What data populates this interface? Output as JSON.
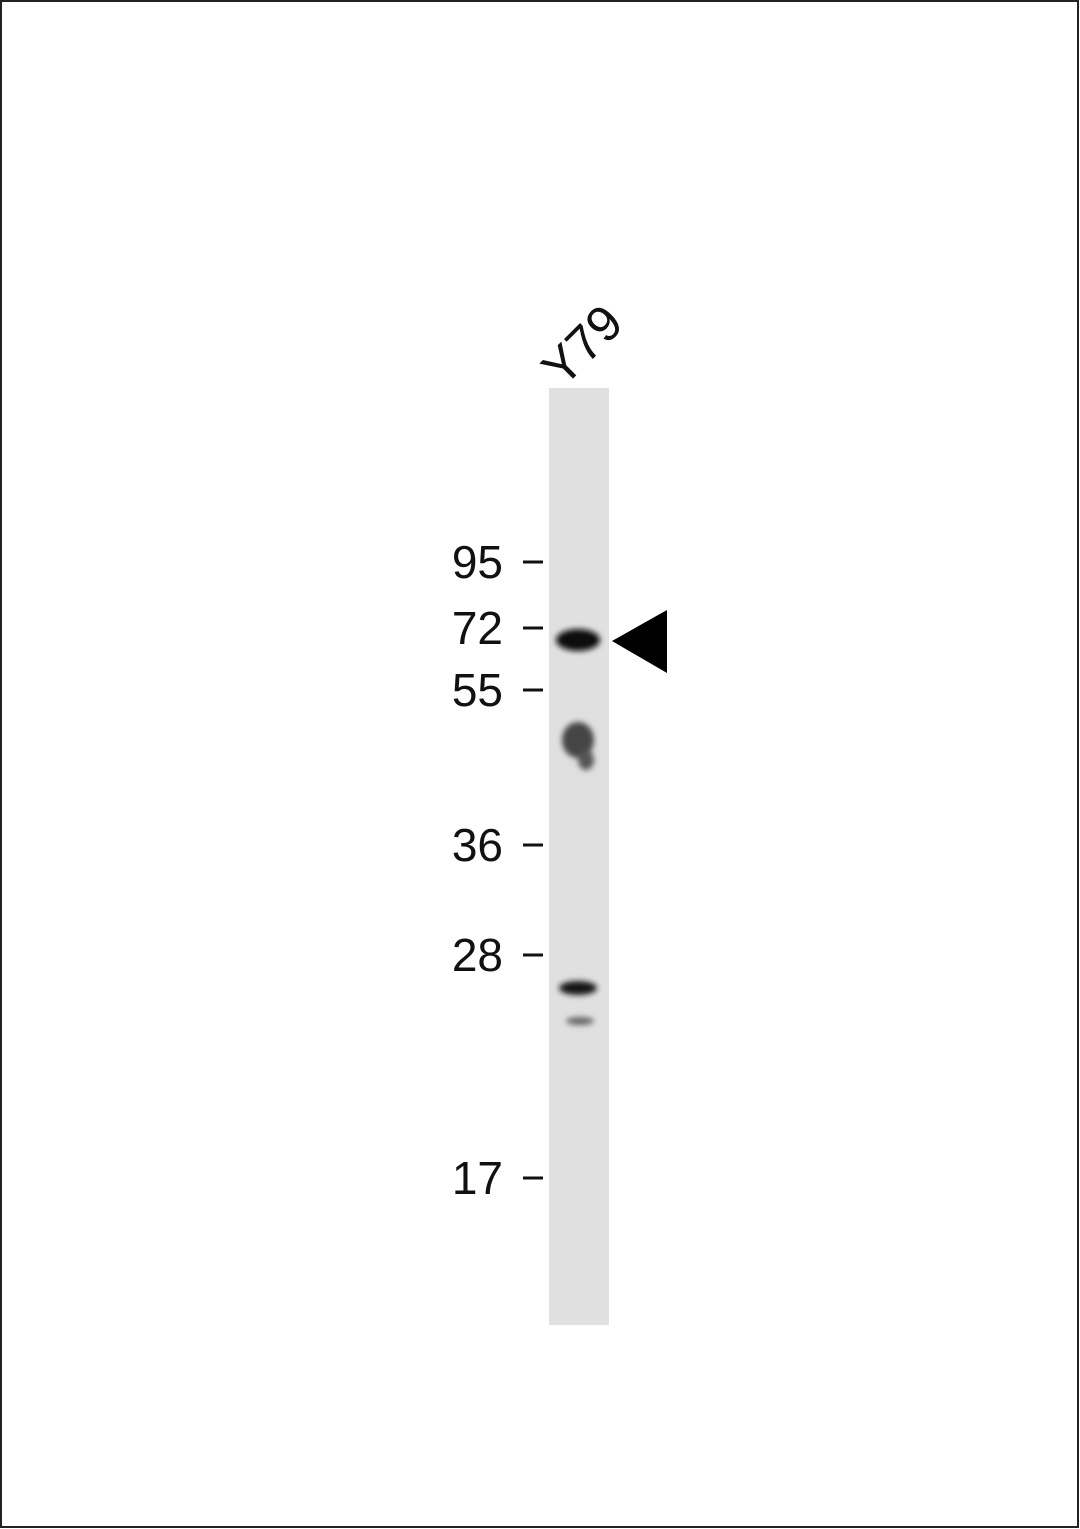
{
  "lane": {
    "label": "Y79"
  },
  "markers": [
    95,
    72,
    55,
    36,
    28,
    17
  ]
}
